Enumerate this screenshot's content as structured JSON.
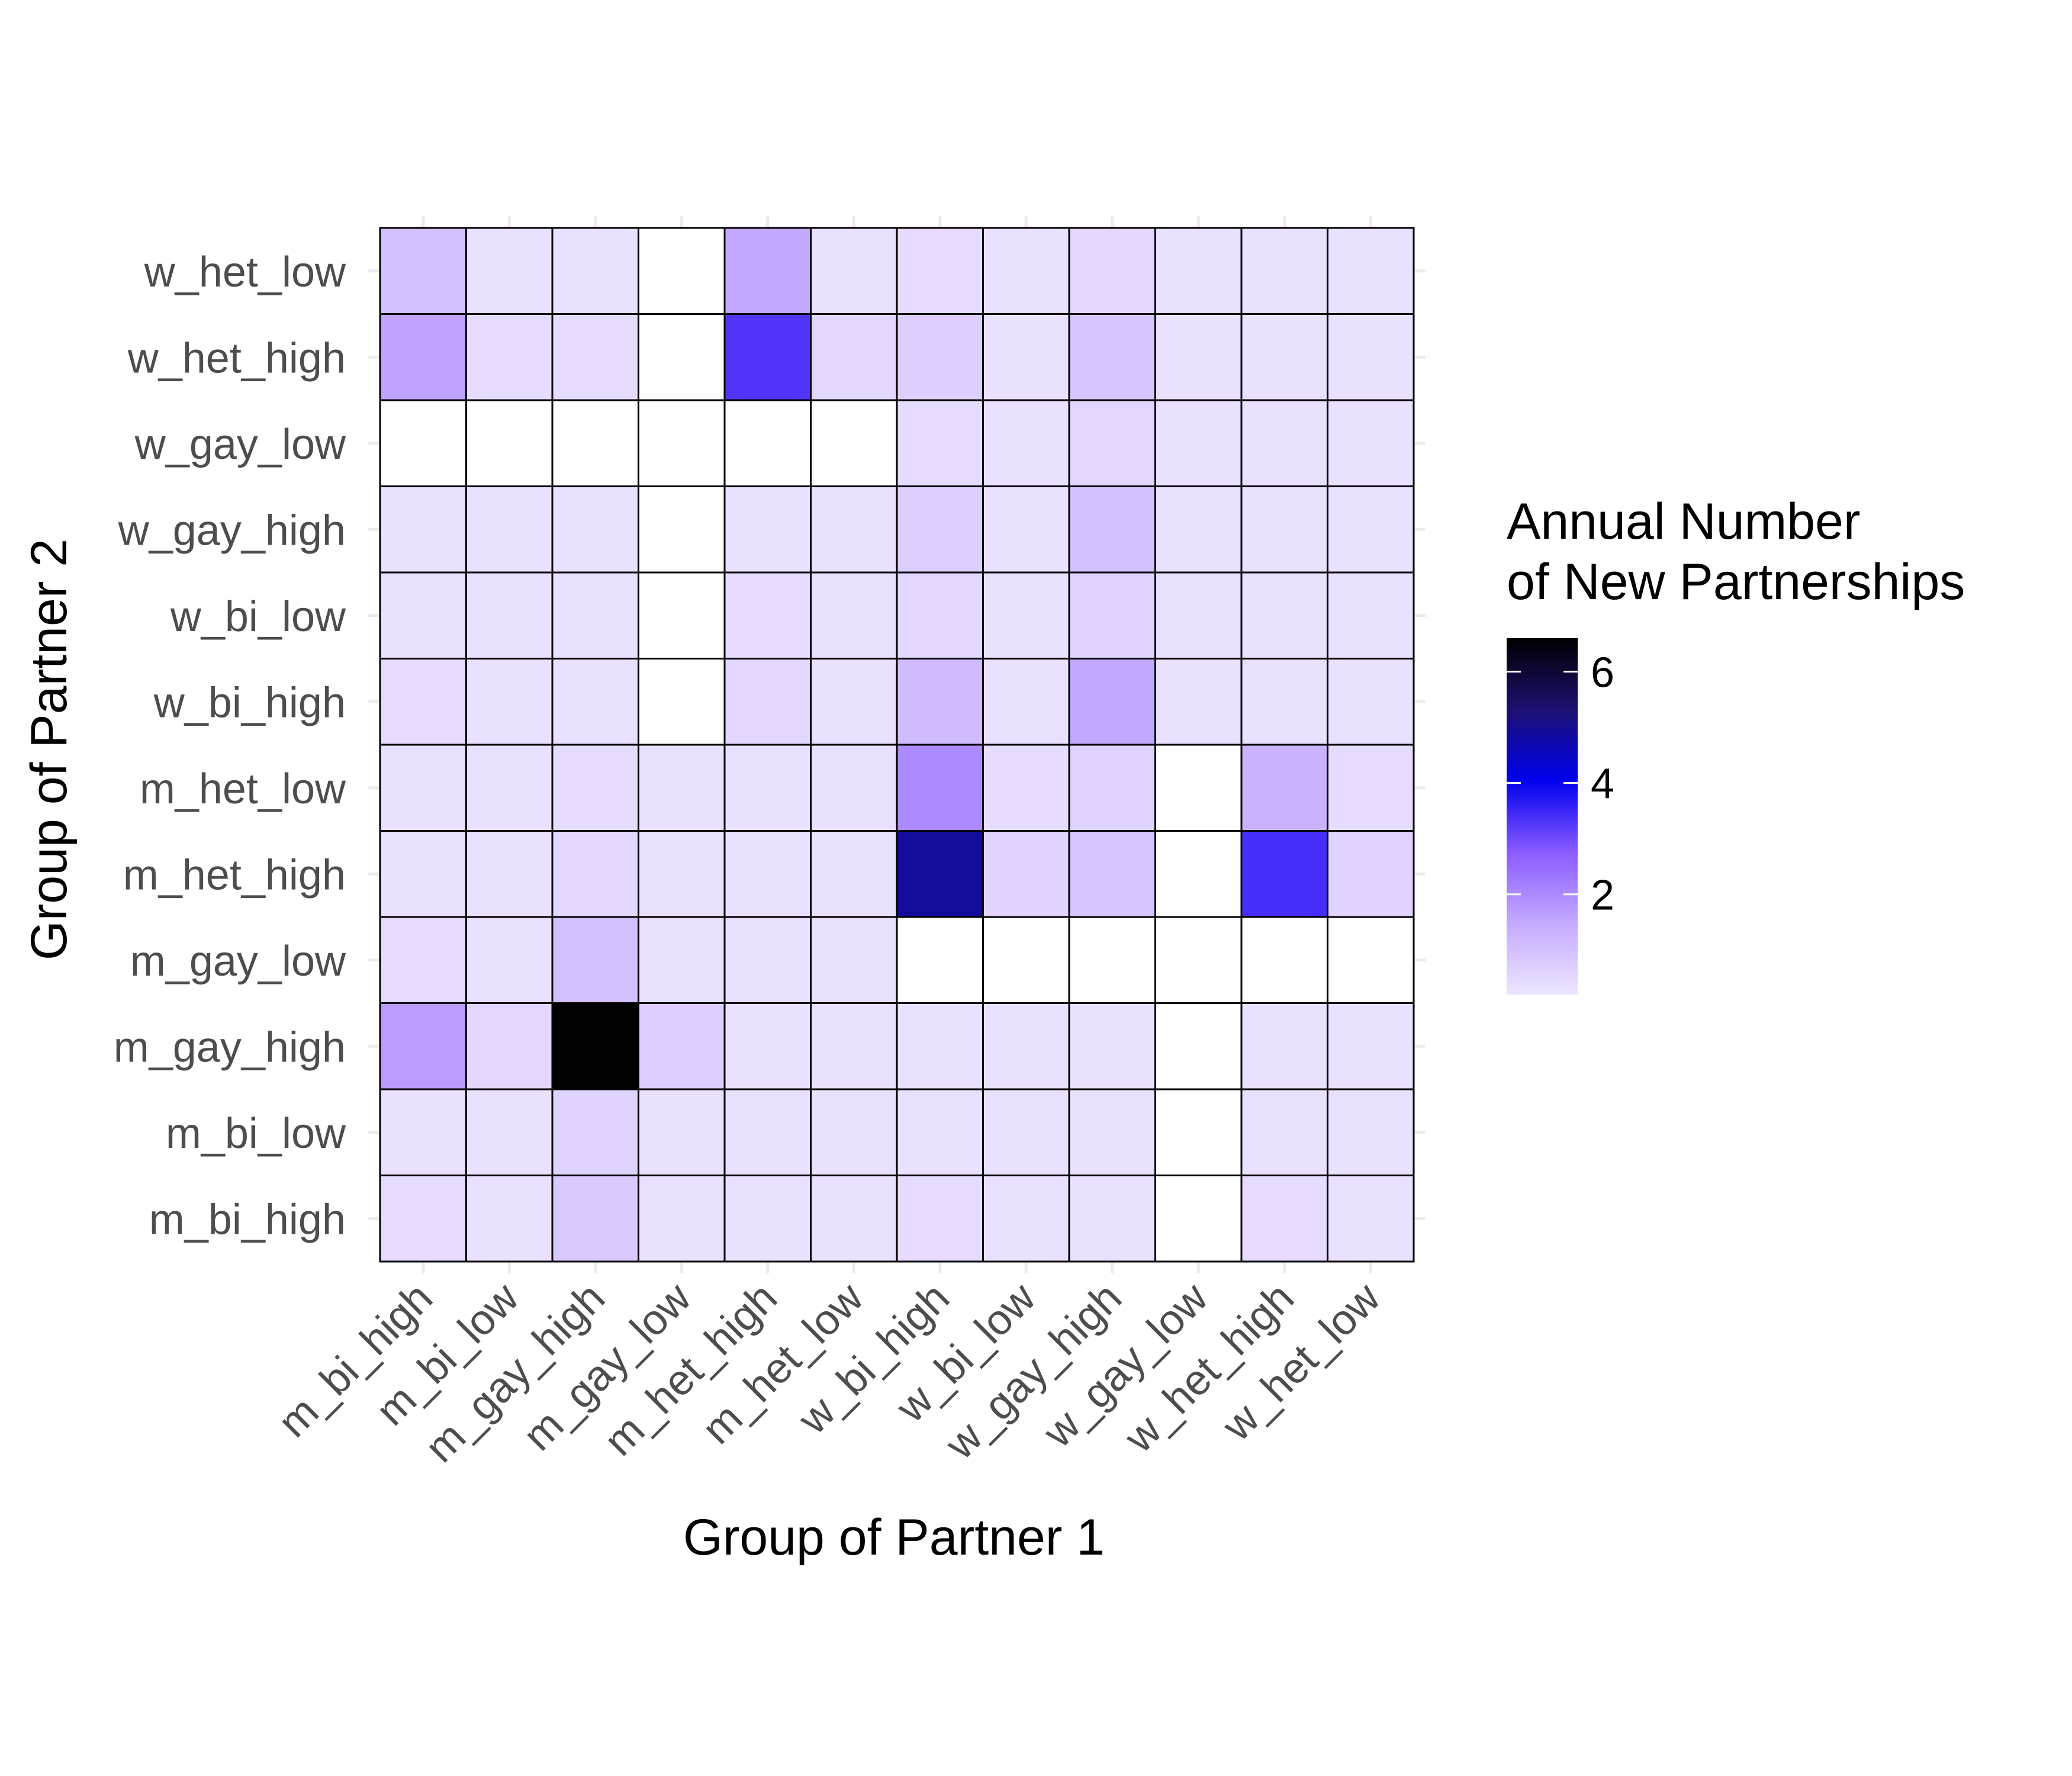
{
  "chart_data": {
    "type": "heatmap",
    "title": "",
    "xlabel": "Group of Partner 1",
    "ylabel": "Group of Partner 2",
    "x_categories": [
      "m_bi_high",
      "m_bi_low",
      "m_gay_high",
      "m_gay_low",
      "m_het_high",
      "m_het_low",
      "w_bi_high",
      "w_bi_low",
      "w_gay_high",
      "w_gay_low",
      "w_het_high",
      "w_het_low"
    ],
    "y_categories": [
      "w_het_low",
      "w_het_high",
      "w_gay_low",
      "w_gay_high",
      "w_bi_low",
      "w_bi_high",
      "m_het_low",
      "m_het_high",
      "m_gay_low",
      "m_gay_high",
      "m_bi_low",
      "m_bi_high"
    ],
    "values": [
      [
        1.0,
        0.3,
        0.3,
        null,
        1.5,
        0.3,
        0.4,
        0.3,
        0.5,
        0.3,
        0.3,
        0.3
      ],
      [
        1.6,
        0.4,
        0.4,
        null,
        3.3,
        0.5,
        0.7,
        0.3,
        0.9,
        0.3,
        0.3,
        0.3
      ],
      [
        null,
        null,
        null,
        null,
        null,
        null,
        0.4,
        0.3,
        0.5,
        0.3,
        0.3,
        0.3
      ],
      [
        0.3,
        0.3,
        0.3,
        null,
        0.3,
        0.3,
        0.7,
        0.3,
        1.0,
        0.3,
        0.3,
        0.3
      ],
      [
        0.3,
        0.3,
        0.3,
        null,
        0.4,
        0.3,
        0.5,
        0.3,
        0.6,
        0.3,
        0.3,
        0.3
      ],
      [
        0.4,
        0.3,
        0.3,
        null,
        0.5,
        0.3,
        1.1,
        0.3,
        1.5,
        0.3,
        0.3,
        0.3
      ],
      [
        0.3,
        0.3,
        0.4,
        0.3,
        0.3,
        0.3,
        2.0,
        0.4,
        0.6,
        null,
        1.3,
        0.4
      ],
      [
        0.3,
        0.3,
        0.5,
        0.3,
        0.3,
        0.3,
        4.9,
        0.6,
        0.9,
        null,
        3.4,
        0.6
      ],
      [
        0.4,
        0.3,
        1.0,
        0.3,
        0.3,
        0.3,
        null,
        null,
        null,
        null,
        null,
        null
      ],
      [
        1.7,
        0.5,
        6.6,
        0.7,
        0.3,
        0.3,
        0.3,
        0.3,
        0.3,
        null,
        0.3,
        0.3
      ],
      [
        0.3,
        0.3,
        0.6,
        0.3,
        0.3,
        0.3,
        0.3,
        0.3,
        0.3,
        null,
        0.3,
        0.3
      ],
      [
        0.4,
        0.3,
        0.8,
        0.3,
        0.3,
        0.3,
        0.4,
        0.3,
        0.3,
        null,
        0.4,
        0.3
      ]
    ],
    "legend": {
      "title_line1": "Annual Number",
      "title_line2": "of New Partnerships",
      "min": 0.2,
      "max": 6.6,
      "ticks": [
        2,
        4,
        6
      ],
      "placement": "right"
    },
    "colors": [
      "#ede5ff",
      "#c4aaff",
      "#8a5bff",
      "#0000ee",
      "#1c1070",
      "#000000"
    ],
    "grid": true
  }
}
